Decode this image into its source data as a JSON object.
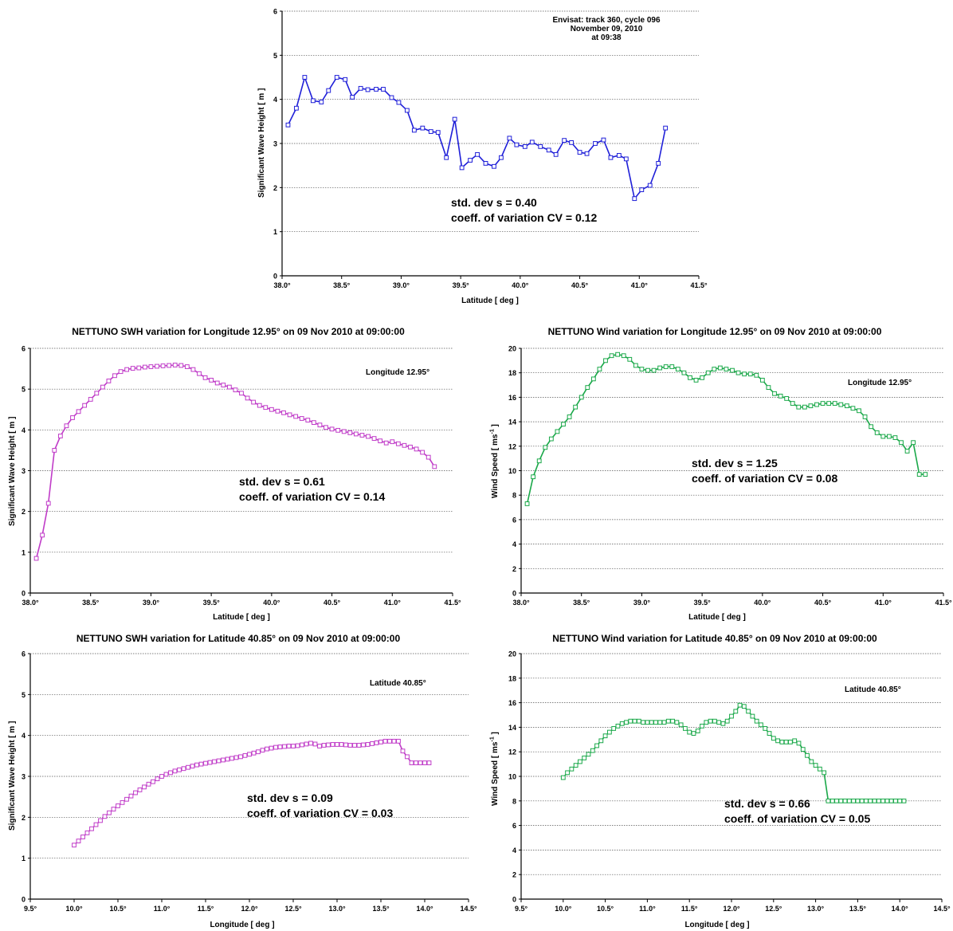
{
  "chart_data": [
    {
      "id": "p0",
      "type": "line",
      "title": "",
      "xlabel": "Latitude [ deg ]",
      "ylabel": "Significant Wave Height [ m ]",
      "xlim": [
        38.0,
        41.5
      ],
      "ylim": [
        0,
        6
      ],
      "xticks": [
        "38.0°",
        "38.5°",
        "39.0°",
        "39.5°",
        "40.0°",
        "40.5°",
        "41.0°",
        "41.5°"
      ],
      "yticks": [
        "0",
        "1",
        "2",
        "3",
        "4",
        "5",
        "6"
      ],
      "grid": "horizontal",
      "color": "#1f1fd8",
      "annotation": [
        "Envisat: track 360, cycle 096",
        "November 09, 2010",
        "at 09:38"
      ],
      "stats": [
        "std. dev  s   = 0.40",
        "coeff. of variation CV = 0.12"
      ],
      "series": [
        {
          "x": [
            38.05,
            38.12,
            38.19,
            38.26,
            38.33,
            38.39,
            38.46,
            38.53,
            38.59,
            38.66,
            38.72,
            38.79,
            38.85,
            38.92,
            38.98,
            39.05,
            39.11,
            39.18,
            39.25,
            39.31,
            39.38,
            39.45,
            39.51,
            39.58,
            39.64,
            39.71,
            39.78,
            39.84,
            39.91,
            39.97,
            40.04,
            40.1,
            40.17,
            40.24,
            40.3,
            40.37,
            40.43,
            40.5,
            40.56,
            40.63,
            40.7,
            40.76,
            40.83,
            40.89,
            40.96,
            41.02,
            41.09,
            41.16,
            41.22
          ],
          "y": [
            3.42,
            3.8,
            4.5,
            3.97,
            3.94,
            4.2,
            4.5,
            4.45,
            4.05,
            4.25,
            4.22,
            4.23,
            4.23,
            4.04,
            3.93,
            3.75,
            3.3,
            3.35,
            3.27,
            3.25,
            2.68,
            3.55,
            2.45,
            2.62,
            2.75,
            2.55,
            2.48,
            2.68,
            3.12,
            2.97,
            2.93,
            3.03,
            2.93,
            2.85,
            2.75,
            3.07,
            3.02,
            2.8,
            2.77,
            3.0,
            3.08,
            2.68,
            2.73,
            2.65,
            1.75,
            1.95,
            2.05,
            2.55,
            3.35
          ]
        }
      ]
    },
    {
      "id": "p1",
      "type": "line",
      "title": "NETTUNO SWH variation for Longitude 12.95° on 09 Nov 2010 at 09:00:00",
      "xlabel": "Latitude [ deg ]",
      "ylabel": "Significant Wave Height [ m ]",
      "xlim": [
        38.0,
        41.5
      ],
      "ylim": [
        0,
        6
      ],
      "xticks": [
        "38.0°",
        "38.5°",
        "39.0°",
        "39.5°",
        "40.0°",
        "40.5°",
        "41.0°",
        "41.5°"
      ],
      "yticks": [
        "0",
        "1",
        "2",
        "3",
        "4",
        "5",
        "6"
      ],
      "grid": "horizontal",
      "color": "#c03cc8",
      "annotation": [
        "Longitude 12.95°"
      ],
      "stats": [
        "std. dev  s   = 0.61",
        "coeff. of variation CV = 0.14"
      ],
      "series": [
        {
          "x": [
            38.05,
            38.1,
            38.15,
            38.2,
            38.25,
            38.3,
            38.35,
            38.4,
            38.45,
            38.5,
            38.55,
            38.6,
            38.65,
            38.7,
            38.75,
            38.8,
            38.85,
            38.9,
            38.95,
            39.0,
            39.05,
            39.1,
            39.15,
            39.2,
            39.25,
            39.3,
            39.35,
            39.4,
            39.45,
            39.5,
            39.55,
            39.6,
            39.65,
            39.7,
            39.75,
            39.8,
            39.85,
            39.9,
            39.95,
            40.0,
            40.05,
            40.1,
            40.15,
            40.2,
            40.25,
            40.3,
            40.35,
            40.4,
            40.45,
            40.5,
            40.55,
            40.6,
            40.65,
            40.7,
            40.75,
            40.8,
            40.85,
            40.9,
            40.95,
            41.0,
            41.05,
            41.1,
            41.15,
            41.2,
            41.25,
            41.3,
            41.35
          ],
          "y": [
            0.85,
            1.42,
            2.2,
            3.5,
            3.85,
            4.1,
            4.3,
            4.45,
            4.6,
            4.75,
            4.9,
            5.05,
            5.2,
            5.33,
            5.43,
            5.48,
            5.51,
            5.52,
            5.54,
            5.55,
            5.56,
            5.57,
            5.58,
            5.59,
            5.58,
            5.55,
            5.48,
            5.38,
            5.28,
            5.22,
            5.15,
            5.1,
            5.05,
            4.98,
            4.9,
            4.78,
            4.68,
            4.6,
            4.55,
            4.5,
            4.46,
            4.42,
            4.37,
            4.33,
            4.28,
            4.24,
            4.18,
            4.12,
            4.06,
            4.02,
            3.99,
            3.96,
            3.93,
            3.9,
            3.87,
            3.84,
            3.79,
            3.73,
            3.68,
            3.71,
            3.66,
            3.62,
            3.58,
            3.53,
            3.45,
            3.33,
            3.1
          ]
        }
      ]
    },
    {
      "id": "p2",
      "type": "line",
      "title": "NETTUNO Wind variation for Longitude 12.95° on 09 Nov 2010 at 09:00:00",
      "xlabel": "Latitude [ deg ]",
      "ylabel": "Wind Speed  [ ms",
      "ylabel_sup": "-1",
      "ylabel_end": " ]",
      "xlim": [
        38.0,
        41.5
      ],
      "ylim": [
        0,
        20
      ],
      "xticks": [
        "38.0°",
        "38.5°",
        "39.0°",
        "39.5°",
        "40.0°",
        "40.5°",
        "41.0°",
        "41.5°"
      ],
      "yticks": [
        "0",
        "2",
        "4",
        "6",
        "8",
        "10",
        "12",
        "14",
        "16",
        "18",
        "20"
      ],
      "grid": "horizontal",
      "color": "#1aa849",
      "annotation": [
        "Longitude 12.95°"
      ],
      "stats": [
        "std. dev  s   = 1.25",
        "coeff. of variation CV = 0.08"
      ],
      "series": [
        {
          "x": [
            38.05,
            38.1,
            38.15,
            38.2,
            38.25,
            38.3,
            38.35,
            38.4,
            38.45,
            38.5,
            38.55,
            38.6,
            38.65,
            38.7,
            38.75,
            38.8,
            38.85,
            38.9,
            38.95,
            39.0,
            39.05,
            39.1,
            39.15,
            39.2,
            39.25,
            39.3,
            39.35,
            39.4,
            39.45,
            39.5,
            39.55,
            39.6,
            39.65,
            39.7,
            39.75,
            39.8,
            39.85,
            39.9,
            39.95,
            40.0,
            40.05,
            40.1,
            40.15,
            40.2,
            40.25,
            40.3,
            40.35,
            40.4,
            40.45,
            40.5,
            40.55,
            40.6,
            40.65,
            40.7,
            40.75,
            40.8,
            40.85,
            40.9,
            40.95,
            41.0,
            41.05,
            41.1,
            41.15,
            41.2,
            41.25,
            41.3,
            41.35
          ],
          "y": [
            7.3,
            9.5,
            10.8,
            11.9,
            12.6,
            13.2,
            13.8,
            14.4,
            15.2,
            16.0,
            16.8,
            17.5,
            18.3,
            19.0,
            19.4,
            19.5,
            19.4,
            19.1,
            18.6,
            18.3,
            18.2,
            18.2,
            18.4,
            18.5,
            18.5,
            18.3,
            18.0,
            17.6,
            17.4,
            17.6,
            18.0,
            18.3,
            18.4,
            18.3,
            18.2,
            18.0,
            17.9,
            17.9,
            17.8,
            17.4,
            16.8,
            16.3,
            16.1,
            15.9,
            15.5,
            15.2,
            15.2,
            15.3,
            15.4,
            15.5,
            15.5,
            15.5,
            15.4,
            15.3,
            15.1,
            14.9,
            14.4,
            13.6,
            13.1,
            12.8,
            12.8,
            12.7,
            12.3,
            11.6,
            12.3,
            9.7,
            9.7
          ]
        }
      ]
    },
    {
      "id": "p3",
      "type": "line",
      "title": "NETTUNO SWH variation for Latitude 40.85° on 09 Nov 2010 at 09:00:00",
      "xlabel": "Longitude [ deg ]",
      "ylabel": "Significant Wave Height [ m ]",
      "xlim": [
        9.5,
        14.5
      ],
      "ylim": [
        0,
        6
      ],
      "xticks": [
        "9.5°",
        "10.0°",
        "10.5°",
        "11.0°",
        "11.5°",
        "12.0°",
        "12.5°",
        "13.0°",
        "13.5°",
        "14.0°",
        "14.5°"
      ],
      "yticks": [
        "0",
        "1",
        "2",
        "3",
        "4",
        "5",
        "6"
      ],
      "grid": "horizontal",
      "color": "#c03cc8",
      "annotation": [
        "Latitude 40.85°"
      ],
      "stats": [
        "std. dev  s   = 0.09",
        "coeff. of variation CV = 0.03"
      ],
      "series": [
        {
          "x": [
            10.0,
            10.05,
            10.1,
            10.15,
            10.2,
            10.25,
            10.3,
            10.35,
            10.4,
            10.45,
            10.5,
            10.55,
            10.6,
            10.65,
            10.7,
            10.75,
            10.8,
            10.85,
            10.9,
            10.95,
            11.0,
            11.05,
            11.1,
            11.15,
            11.2,
            11.25,
            11.3,
            11.35,
            11.4,
            11.45,
            11.5,
            11.55,
            11.6,
            11.65,
            11.7,
            11.75,
            11.8,
            11.85,
            11.9,
            11.95,
            12.0,
            12.05,
            12.1,
            12.15,
            12.2,
            12.25,
            12.3,
            12.35,
            12.4,
            12.45,
            12.5,
            12.55,
            12.6,
            12.65,
            12.7,
            12.75,
            12.8,
            12.85,
            12.9,
            12.95,
            13.0,
            13.05,
            13.1,
            13.15,
            13.2,
            13.25,
            13.3,
            13.35,
            13.4,
            13.45,
            13.5,
            13.55,
            13.6,
            13.65,
            13.7,
            13.75,
            13.8,
            13.85,
            13.9,
            13.95,
            14.0,
            14.05
          ],
          "y": [
            1.32,
            1.42,
            1.52,
            1.62,
            1.72,
            1.82,
            1.92,
            2.02,
            2.11,
            2.2,
            2.28,
            2.36,
            2.44,
            2.52,
            2.6,
            2.67,
            2.74,
            2.81,
            2.87,
            2.94,
            3.0,
            3.05,
            3.09,
            3.13,
            3.16,
            3.19,
            3.22,
            3.25,
            3.28,
            3.3,
            3.32,
            3.34,
            3.36,
            3.38,
            3.4,
            3.42,
            3.44,
            3.46,
            3.48,
            3.51,
            3.54,
            3.57,
            3.6,
            3.64,
            3.67,
            3.69,
            3.71,
            3.72,
            3.73,
            3.74,
            3.74,
            3.75,
            3.77,
            3.79,
            3.81,
            3.79,
            3.74,
            3.76,
            3.77,
            3.78,
            3.78,
            3.78,
            3.77,
            3.76,
            3.76,
            3.76,
            3.77,
            3.78,
            3.8,
            3.82,
            3.84,
            3.86,
            3.86,
            3.86,
            3.86,
            3.62,
            3.48,
            3.33,
            3.33,
            3.33,
            3.33,
            3.33
          ]
        }
      ]
    },
    {
      "id": "p4",
      "type": "line",
      "title": "NETTUNO Wind variation for Latitude 40.85° on 09 Nov 2010 at 09:00:00",
      "xlabel": "Longitude [ deg ]",
      "ylabel": "Wind Speed  [ ms",
      "ylabel_sup": "-1",
      "ylabel_end": " ]",
      "xlim": [
        9.5,
        14.5
      ],
      "ylim": [
        0,
        20
      ],
      "xticks": [
        "9.5°",
        "10.0°",
        "10.5°",
        "11.0°",
        "11.5°",
        "12.0°",
        "12.5°",
        "13.0°",
        "13.5°",
        "14.0°",
        "14.5°"
      ],
      "yticks": [
        "0",
        "2",
        "4",
        "6",
        "8",
        "10",
        "12",
        "14",
        "16",
        "18",
        "20"
      ],
      "grid": "horizontal",
      "color": "#1aa849",
      "annotation": [
        "Latitude 40.85°"
      ],
      "stats": [
        "std. dev  s   = 0.66",
        "coeff. of variation CV = 0.05"
      ],
      "series": [
        {
          "x": [
            10.0,
            10.05,
            10.1,
            10.15,
            10.2,
            10.25,
            10.3,
            10.35,
            10.4,
            10.45,
            10.5,
            10.55,
            10.6,
            10.65,
            10.7,
            10.75,
            10.8,
            10.85,
            10.9,
            10.95,
            11.0,
            11.05,
            11.1,
            11.15,
            11.2,
            11.25,
            11.3,
            11.35,
            11.4,
            11.45,
            11.5,
            11.55,
            11.6,
            11.65,
            11.7,
            11.75,
            11.8,
            11.85,
            11.9,
            11.95,
            12.0,
            12.05,
            12.1,
            12.15,
            12.2,
            12.25,
            12.3,
            12.35,
            12.4,
            12.45,
            12.5,
            12.55,
            12.6,
            12.65,
            12.7,
            12.75,
            12.8,
            12.85,
            12.9,
            12.95,
            13.0,
            13.05,
            13.1,
            13.15,
            13.2,
            13.25,
            13.3,
            13.35,
            13.4,
            13.45,
            13.5,
            13.55,
            13.6,
            13.65,
            13.7,
            13.75,
            13.8,
            13.85,
            13.9,
            13.95,
            14.0,
            14.05
          ],
          "y": [
            9.9,
            10.3,
            10.6,
            10.9,
            11.2,
            11.5,
            11.8,
            12.1,
            12.5,
            12.9,
            13.3,
            13.6,
            13.9,
            14.1,
            14.3,
            14.4,
            14.5,
            14.5,
            14.5,
            14.4,
            14.4,
            14.4,
            14.4,
            14.4,
            14.4,
            14.5,
            14.5,
            14.4,
            14.2,
            13.9,
            13.6,
            13.5,
            13.7,
            14.1,
            14.4,
            14.5,
            14.5,
            14.4,
            14.3,
            14.5,
            14.9,
            15.3,
            15.8,
            15.7,
            15.3,
            14.9,
            14.5,
            14.2,
            13.9,
            13.5,
            13.1,
            12.9,
            12.8,
            12.8,
            12.8,
            12.9,
            12.7,
            12.2,
            11.7,
            11.2,
            10.9,
            10.6,
            10.3,
            8.0,
            8.0,
            8.0,
            8.0,
            8.0,
            8.0,
            8.0,
            8.0,
            8.0,
            8.0,
            8.0,
            8.0,
            8.0,
            8.0,
            8.0,
            8.0,
            8.0,
            8.0,
            8.0
          ]
        }
      ]
    }
  ]
}
